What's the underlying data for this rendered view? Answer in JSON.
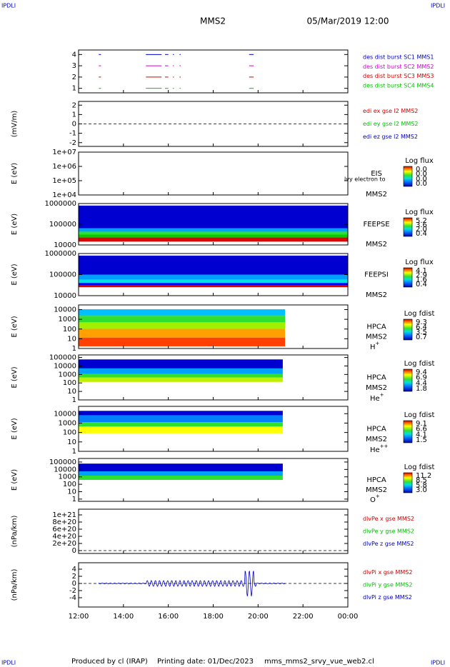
{
  "header": {
    "left_mark": "IPDLI",
    "right_mark": "IPDLI",
    "title": "MMS2",
    "date": "05/Mar/2019 12:00"
  },
  "chart_data": [
    {
      "type": "burst",
      "ylim": [
        0.6,
        4.4
      ],
      "yticks": [
        1,
        2,
        3,
        4
      ],
      "legend": [
        {
          "name": "des dist burst SC1 MMS1",
          "color": "#0000c8"
        },
        {
          "name": "des dist burst SC2 MMS2",
          "color": "#d000d0"
        },
        {
          "name": "des dist burst SC3 MMS3",
          "color": "#d00000"
        },
        {
          "name": "des dist burst SC4 MMS4",
          "color": "#00c000"
        }
      ]
    },
    {
      "type": "line",
      "ylabel": "(mV/m)",
      "ylim": [
        -2.4,
        2.4
      ],
      "yticks": [
        -2,
        -1,
        0,
        1,
        2
      ],
      "legend": [
        {
          "name": "edi ex gse l2 MMS2",
          "color": "#d00000"
        },
        {
          "name": "edi ey gse l2 MMS2",
          "color": "#00c000"
        },
        {
          "name": "edi ez gse l2 MMS2",
          "color": "#0000c8"
        }
      ]
    },
    {
      "type": "spectrogram",
      "ylabel": "E (eV)",
      "log": true,
      "ylim": [
        10000,
        10000000
      ],
      "yticks": [
        {
          "value": 10000,
          "label": "1e+04"
        },
        {
          "value": 100000,
          "label": "1e+05"
        },
        {
          "value": 1000000,
          "label": "1e+06"
        },
        {
          "value": 10000000,
          "label": "1e+07"
        }
      ],
      "instrument": "EIS",
      "spacecraft": "MMS2",
      "note": "lvy electron to",
      "colorbar": {
        "title": "Log flux",
        "labels": [
          "0.0",
          "0.0",
          "0.0",
          "0.0"
        ]
      }
    },
    {
      "type": "spectrogram",
      "ylabel": "E (eV)",
      "log": true,
      "ylim": [
        10000,
        1000000
      ],
      "yticks": [
        10000,
        100000,
        1000000
      ],
      "instrument": "FEEPSE",
      "spacecraft": "MMS2",
      "colorbar": {
        "title": "Log flux",
        "labels": [
          "5.2",
          "3.6",
          "2.0",
          "0.4"
        ]
      }
    },
    {
      "type": "spectrogram",
      "ylabel": "E (eV)",
      "log": true,
      "ylim": [
        10000,
        1000000
      ],
      "yticks": [
        10000,
        100000,
        1000000
      ],
      "instrument": "FEEPSI",
      "spacecraft": "MMS2",
      "colorbar": {
        "title": "Log flux",
        "labels": [
          "4.1",
          "2.9",
          "1.6",
          "0.4"
        ]
      }
    },
    {
      "type": "spectrogram",
      "ylabel": "E (eV)",
      "log": true,
      "ylim": [
        1,
        30000
      ],
      "yticks": [
        1,
        10,
        100,
        1000,
        10000
      ],
      "instrument": "HPCA",
      "spacecraft": "MMS2",
      "species": "H",
      "charge": "+",
      "colorbar": {
        "title": "Log fdist",
        "labels": [
          "9.3",
          "6.4",
          "3.5",
          "0.7"
        ]
      }
    },
    {
      "type": "spectrogram",
      "ylabel": "E (eV)",
      "log": true,
      "ylim": [
        1,
        200000
      ],
      "yticks": [
        1,
        10,
        100,
        1000,
        10000,
        100000
      ],
      "instrument": "HPCA",
      "spacecraft": "MMS2",
      "species": "He",
      "charge": "+",
      "colorbar": {
        "title": "Log fdist",
        "labels": [
          "9.4",
          "6.9",
          "4.4",
          "1.8"
        ]
      }
    },
    {
      "type": "spectrogram",
      "ylabel": "E (eV)",
      "log": true,
      "ylim": [
        1,
        60000
      ],
      "yticks": [
        1,
        10,
        100,
        1000,
        10000
      ],
      "instrument": "HPCA",
      "spacecraft": "MMS2",
      "species": "He",
      "charge": "++",
      "colorbar": {
        "title": "Log fdist",
        "labels": [
          "9.1",
          "6.6",
          "4.1",
          "1.5"
        ]
      }
    },
    {
      "type": "spectrogram",
      "ylabel": "E (eV)",
      "log": true,
      "ylim": [
        0.5,
        300000
      ],
      "yticks": [
        1,
        10,
        100,
        1000,
        10000,
        100000
      ],
      "instrument": "HPCA",
      "spacecraft": "MMS2",
      "species": "O",
      "charge": "+",
      "colorbar": {
        "title": "Log fdist",
        "labels": [
          "11.2",
          "8.5",
          "5.8",
          "3.0"
        ]
      }
    },
    {
      "type": "line",
      "ylabel": "(nPa/km)",
      "ylim": [
        -8e+19,
        1.16e+21
      ],
      "yticks": [
        0,
        {
          "value": 2e+20,
          "label": "2e+20"
        },
        {
          "value": 4e+20,
          "label": "4e+20"
        },
        {
          "value": 6e+20,
          "label": "6e+20"
        },
        {
          "value": 8e+20,
          "label": "8e+20"
        },
        {
          "value": 1e+21,
          "label": "1e+21"
        }
      ],
      "legend": [
        {
          "name": "dlvPe x gse MMS2",
          "color": "#d00000"
        },
        {
          "name": "dlvPe y gse MMS2",
          "color": "#00c000"
        },
        {
          "name": "dlvPe z gse MMS2",
          "color": "#0000c8"
        }
      ]
    },
    {
      "type": "line",
      "ylabel": "(nPa/km)",
      "ylim": [
        -6.6,
        5.8
      ],
      "yticks": [
        -4,
        -2,
        0,
        2,
        4
      ],
      "legend": [
        {
          "name": "dlvPi x gse MMS2",
          "color": "#d00000"
        },
        {
          "name": "dlvPi y gse MMS2",
          "color": "#00c000"
        },
        {
          "name": "dlvPi z gse MMS2",
          "color": "#0000c8"
        }
      ]
    }
  ],
  "xaxis": {
    "xlim": [
      12,
      24
    ],
    "xticks": [
      {
        "value": 12,
        "label": "12:00"
      },
      {
        "value": 14,
        "label": "14:00"
      },
      {
        "value": 16,
        "label": "16:00"
      },
      {
        "value": 18,
        "label": "18:00"
      },
      {
        "value": 20,
        "label": "20:00"
      },
      {
        "value": 22,
        "label": "22:00"
      },
      {
        "value": 24,
        "label": "00:00"
      }
    ]
  },
  "footer": {
    "producer": "Produced by cl (IRAP)",
    "printed": "Printing date: 01/Dec/2023",
    "script": "mms_mms2_srvy_vue_web2.cl"
  }
}
